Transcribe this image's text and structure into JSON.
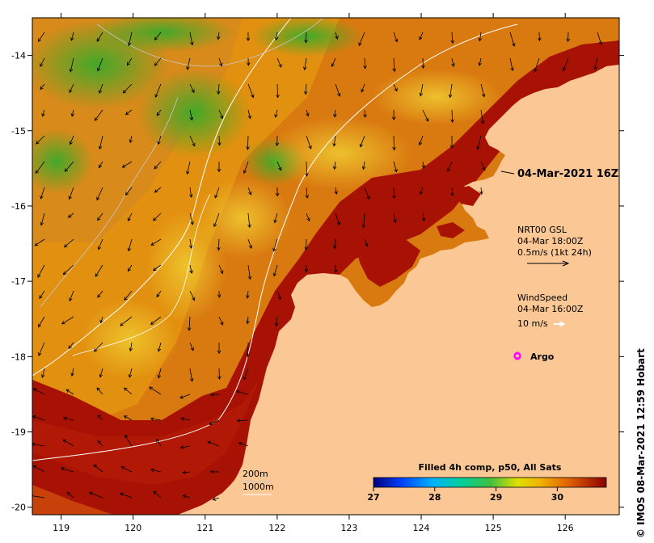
{
  "map": {
    "lon_ticks": [
      "119",
      "120",
      "121",
      "122",
      "123",
      "124",
      "125",
      "126"
    ],
    "lat_ticks": [
      "-14",
      "-15",
      "-16",
      "-17",
      "-18",
      "-19",
      "-20"
    ],
    "lon_range": [
      118.6,
      126.75
    ],
    "lat_range": [
      -20.1,
      -13.5
    ]
  },
  "annotations": {
    "timestamp": "04-Mar-2021 16Z",
    "current_title": "NRT00 GSL",
    "current_time": "04-Mar 18:00Z",
    "current_scale": "0.5m/s (1kt 24h)",
    "wind_title": "WindSpeed",
    "wind_time": "04-Mar 16:00Z",
    "wind_scale": "10 m/s",
    "argo_label": "Argo",
    "isobath_1": "200m",
    "isobath_2": "1000m",
    "credit": "© IMOS 08-Mar-2021 12:59 Hobart"
  },
  "colorbar": {
    "title": "Filled 4h comp, p50, All Sats",
    "ticks": [
      "27",
      "28",
      "29",
      "30"
    ],
    "range": [
      27,
      30.8
    ]
  },
  "colors": {
    "land": "#fbc794",
    "sst_hot": "#9a0a02",
    "sst_warm": "#d4650a",
    "sst_mid": "#e69a12",
    "sst_cool": "#5bb427",
    "argo": "#ff00ff"
  }
}
